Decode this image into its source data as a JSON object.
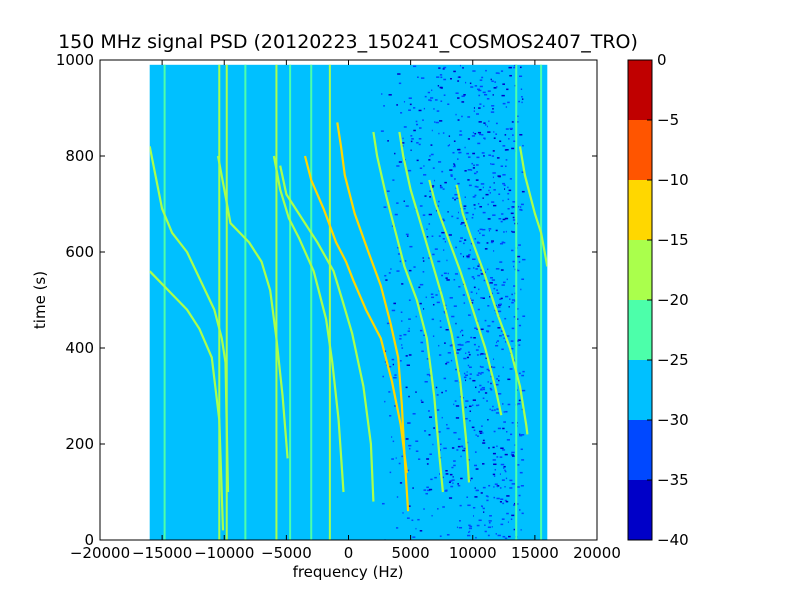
{
  "chart_data": {
    "type": "heatmap",
    "title": "150 MHz signal PSD (20120223_150241_COSMOS2407_TRO)",
    "xlabel": "frequency (Hz)",
    "ylabel": "time (s)",
    "xlim": [
      -20000,
      20000
    ],
    "ylim": [
      0,
      1000
    ],
    "x_ticks": [
      -20000,
      -15000,
      -10000,
      -5000,
      0,
      5000,
      10000,
      15000,
      20000
    ],
    "y_ticks": [
      0,
      200,
      400,
      600,
      800,
      1000
    ],
    "data_extent": {
      "x": [
        -16000,
        16000
      ],
      "y": [
        0,
        990
      ]
    },
    "background_level_dB": -27,
    "noisy_band_Hz": [
      2500,
      14000
    ],
    "vertical_lines": [
      {
        "x": -14800,
        "level": -25
      },
      {
        "x": -10400,
        "level": -20
      },
      {
        "x": -9800,
        "level": -20
      },
      {
        "x": -8300,
        "level": -25
      },
      {
        "x": -5800,
        "level": -20
      },
      {
        "x": -4700,
        "level": -25
      },
      {
        "x": -3000,
        "level": -25
      },
      {
        "x": -1500,
        "level": -20
      },
      {
        "x": 13500,
        "level": -25
      },
      {
        "x": 15500,
        "level": -25
      }
    ],
    "traces": [
      {
        "level": -20,
        "points": [
          [
            -16000,
            820
          ],
          [
            -15000,
            690
          ],
          [
            -14200,
            640
          ],
          [
            -13000,
            600
          ],
          [
            -10800,
            480
          ],
          [
            -10200,
            420
          ],
          [
            -9900,
            370
          ],
          [
            -9700,
            100
          ]
        ]
      },
      {
        "level": -20,
        "points": [
          [
            -16000,
            560
          ],
          [
            -14500,
            520
          ],
          [
            -13000,
            480
          ],
          [
            -12000,
            440
          ],
          [
            -11000,
            380
          ],
          [
            -10400,
            250
          ],
          [
            -10100,
            20
          ]
        ]
      },
      {
        "level": -20,
        "points": [
          [
            -10500,
            800
          ],
          [
            -10000,
            730
          ],
          [
            -9500,
            660
          ],
          [
            -8000,
            620
          ],
          [
            -7000,
            580
          ],
          [
            -6300,
            520
          ],
          [
            -5800,
            420
          ],
          [
            -5300,
            300
          ],
          [
            -4900,
            170
          ]
        ]
      },
      {
        "level": -20,
        "points": [
          [
            -6000,
            800
          ],
          [
            -5500,
            730
          ],
          [
            -4800,
            670
          ],
          [
            -4000,
            630
          ],
          [
            -2800,
            560
          ],
          [
            -1800,
            460
          ],
          [
            -1300,
            370
          ],
          [
            -800,
            250
          ],
          [
            -400,
            100
          ]
        ]
      },
      {
        "level": -20,
        "points": [
          [
            -5500,
            780
          ],
          [
            -5000,
            720
          ],
          [
            -4000,
            680
          ],
          [
            -2500,
            620
          ],
          [
            -1200,
            560
          ],
          [
            -500,
            500
          ],
          [
            300,
            430
          ],
          [
            1200,
            320
          ],
          [
            1800,
            200
          ],
          [
            2000,
            80
          ]
        ]
      },
      {
        "level": -15,
        "points": [
          [
            -3500,
            800
          ],
          [
            -3000,
            750
          ],
          [
            -2000,
            690
          ],
          [
            -1000,
            620
          ],
          [
            -200,
            580
          ],
          [
            400,
            540
          ],
          [
            1400,
            480
          ],
          [
            2600,
            420
          ],
          [
            3500,
            330
          ],
          [
            4200,
            240
          ],
          [
            4700,
            140
          ]
        ]
      },
      {
        "level": -15,
        "points": [
          [
            -900,
            870
          ],
          [
            -600,
            820
          ],
          [
            -300,
            760
          ],
          [
            500,
            680
          ],
          [
            1600,
            600
          ],
          [
            2600,
            530
          ],
          [
            3400,
            450
          ],
          [
            4000,
            380
          ],
          [
            4300,
            280
          ],
          [
            4500,
            180
          ],
          [
            4800,
            60
          ]
        ]
      },
      {
        "level": -20,
        "points": [
          [
            2000,
            850
          ],
          [
            2300,
            800
          ],
          [
            3000,
            720
          ],
          [
            3700,
            650
          ],
          [
            4500,
            570
          ],
          [
            5500,
            500
          ],
          [
            6300,
            420
          ],
          [
            6900,
            300
          ],
          [
            7300,
            180
          ],
          [
            7600,
            100
          ]
        ]
      },
      {
        "level": -20,
        "points": [
          [
            4100,
            850
          ],
          [
            4400,
            800
          ],
          [
            5000,
            730
          ],
          [
            5800,
            660
          ],
          [
            6600,
            590
          ],
          [
            7500,
            510
          ],
          [
            8300,
            430
          ],
          [
            9000,
            330
          ],
          [
            9500,
            200
          ],
          [
            9700,
            120
          ]
        ]
      },
      {
        "level": -20,
        "points": [
          [
            6500,
            750
          ],
          [
            7000,
            700
          ],
          [
            8000,
            630
          ],
          [
            9000,
            560
          ],
          [
            10000,
            480
          ],
          [
            11000,
            400
          ],
          [
            11800,
            320
          ],
          [
            12300,
            260
          ]
        ]
      },
      {
        "level": -20,
        "points": [
          [
            8700,
            740
          ],
          [
            9200,
            680
          ],
          [
            10000,
            620
          ],
          [
            11000,
            550
          ],
          [
            12000,
            470
          ],
          [
            13000,
            400
          ],
          [
            13800,
            320
          ],
          [
            14300,
            240
          ],
          [
            14400,
            220
          ]
        ]
      },
      {
        "level": -20,
        "points": [
          [
            13800,
            820
          ],
          [
            14200,
            760
          ],
          [
            15000,
            680
          ],
          [
            15500,
            640
          ],
          [
            16000,
            570
          ]
        ]
      }
    ],
    "colorbar": {
      "min": -40,
      "max": 0,
      "ticks": [
        0,
        -5,
        -10,
        -15,
        -20,
        -25,
        -30,
        -35,
        -40
      ],
      "tick_labels": [
        "0",
        "−5",
        "−10",
        "−15",
        "−20",
        "−25",
        "−30",
        "−35",
        "−40"
      ],
      "bins": [
        {
          "from": -40,
          "to": -35,
          "color": "#0000c8"
        },
        {
          "from": -35,
          "to": -30,
          "color": "#0048ff"
        },
        {
          "from": -30,
          "to": -25,
          "color": "#00c0ff"
        },
        {
          "from": -25,
          "to": -20,
          "color": "#4cffaa"
        },
        {
          "from": -20,
          "to": -15,
          "color": "#aaff4c"
        },
        {
          "from": -15,
          "to": -10,
          "color": "#ffd700"
        },
        {
          "from": -10,
          "to": -5,
          "color": "#ff5500"
        },
        {
          "from": -5,
          "to": 0,
          "color": "#c00000"
        }
      ]
    },
    "x_tick_labels": [
      "−20000",
      "−15000",
      "−10000",
      "−5000",
      "0",
      "5000",
      "10000",
      "15000",
      "20000"
    ],
    "y_tick_labels": [
      "0",
      "200",
      "400",
      "600",
      "800",
      "1000"
    ]
  }
}
